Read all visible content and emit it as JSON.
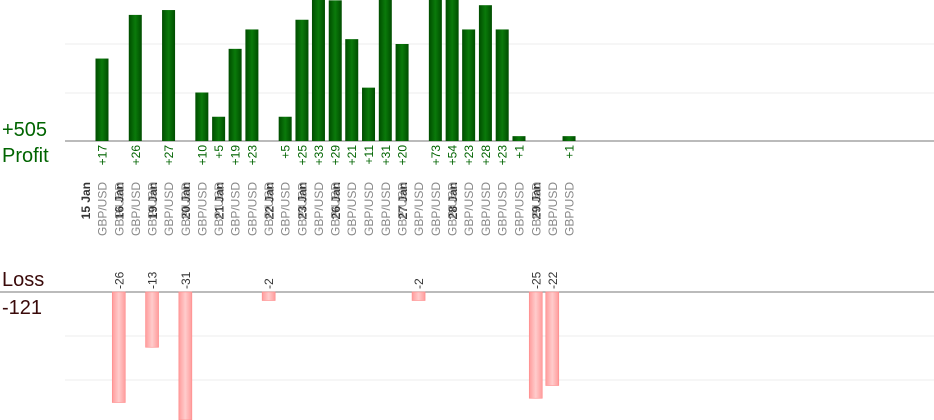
{
  "totals": {
    "profit_value": "+505",
    "profit_label": "Profit",
    "loss_label": "Loss",
    "loss_value": "-121"
  },
  "colors": {
    "profit_bar": "#006400",
    "loss_bar": "#ffb3b3",
    "profit_text": "#006400",
    "loss_text": "#3a0a0a",
    "date_text": "#333333",
    "pair_text": "#888888"
  },
  "chart_data": {
    "type": "bar",
    "title": "",
    "dates": [
      "15 Jan",
      "16 Jan",
      "19 Jan",
      "20 Jan",
      "21 Jan",
      "22 Jan",
      "23 Jan",
      "26 Jan",
      "27 Jan",
      "28 Jan",
      "29 Jan"
    ],
    "trades": [
      {
        "date": "15 Jan",
        "pair": "GBP/USD",
        "value": 17,
        "label": "+17"
      },
      {
        "date": "15 Jan",
        "pair": "GBP/USD",
        "value": -26,
        "label": "-26"
      },
      {
        "date": "16 Jan",
        "pair": "GBP/USD",
        "value": 26,
        "label": "+26"
      },
      {
        "date": "16 Jan",
        "pair": "GBP/USD",
        "value": -13,
        "label": "-13"
      },
      {
        "date": "19 Jan",
        "pair": "GBP/USD",
        "value": 27,
        "label": "+27"
      },
      {
        "date": "19 Jan",
        "pair": "GBP/USD",
        "value": -31,
        "label": "-31"
      },
      {
        "date": "20 Jan",
        "pair": "GBP/USD",
        "value": 10,
        "label": "+10"
      },
      {
        "date": "20 Jan",
        "pair": "GBP/USD",
        "value": 5,
        "label": "+5"
      },
      {
        "date": "21 Jan",
        "pair": "GBP/USD",
        "value": 19,
        "label": "+19"
      },
      {
        "date": "21 Jan",
        "pair": "GBP/USD",
        "value": 23,
        "label": "+23"
      },
      {
        "date": "21 Jan",
        "pair": "GBP/USD",
        "value": -2,
        "label": "-2"
      },
      {
        "date": "22 Jan",
        "pair": "GBP/USD",
        "value": 5,
        "label": "+5"
      },
      {
        "date": "22 Jan",
        "pair": "GBP/USD",
        "value": 25,
        "label": "+25"
      },
      {
        "date": "23 Jan",
        "pair": "GBP/USD",
        "value": 33,
        "label": "+33"
      },
      {
        "date": "23 Jan",
        "pair": "GBP/USD",
        "value": 29,
        "label": "+29"
      },
      {
        "date": "26 Jan",
        "pair": "GBP/USD",
        "value": 21,
        "label": "+21"
      },
      {
        "date": "26 Jan",
        "pair": "GBP/USD",
        "value": 11,
        "label": "+11"
      },
      {
        "date": "26 Jan",
        "pair": "GBP/USD",
        "value": 31,
        "label": "+31"
      },
      {
        "date": "26 Jan",
        "pair": "GBP/USD",
        "value": 20,
        "label": "+20"
      },
      {
        "date": "27 Jan",
        "pair": "GBP/USD",
        "value": -2,
        "label": "-2"
      },
      {
        "date": "27 Jan",
        "pair": "GBP/USD",
        "value": 73,
        "label": "+73"
      },
      {
        "date": "27 Jan",
        "pair": "GBP/USD",
        "value": 54,
        "label": "+54"
      },
      {
        "date": "28 Jan",
        "pair": "GBP/USD",
        "value": 23,
        "label": "+23"
      },
      {
        "date": "28 Jan",
        "pair": "GBP/USD",
        "value": 28,
        "label": "+28"
      },
      {
        "date": "28 Jan",
        "pair": "GBP/USD",
        "value": 23,
        "label": "+23"
      },
      {
        "date": "28 Jan",
        "pair": "GBP/USD",
        "value": 1,
        "label": "+1"
      },
      {
        "date": "28 Jan",
        "pair": "GBP/USD",
        "value": -25,
        "label": "-25"
      },
      {
        "date": "29 Jan",
        "pair": "GBP/USD",
        "value": -22,
        "label": "-22"
      },
      {
        "date": "29 Jan",
        "pair": "GBP/USD",
        "value": 1,
        "label": "+1"
      }
    ]
  }
}
